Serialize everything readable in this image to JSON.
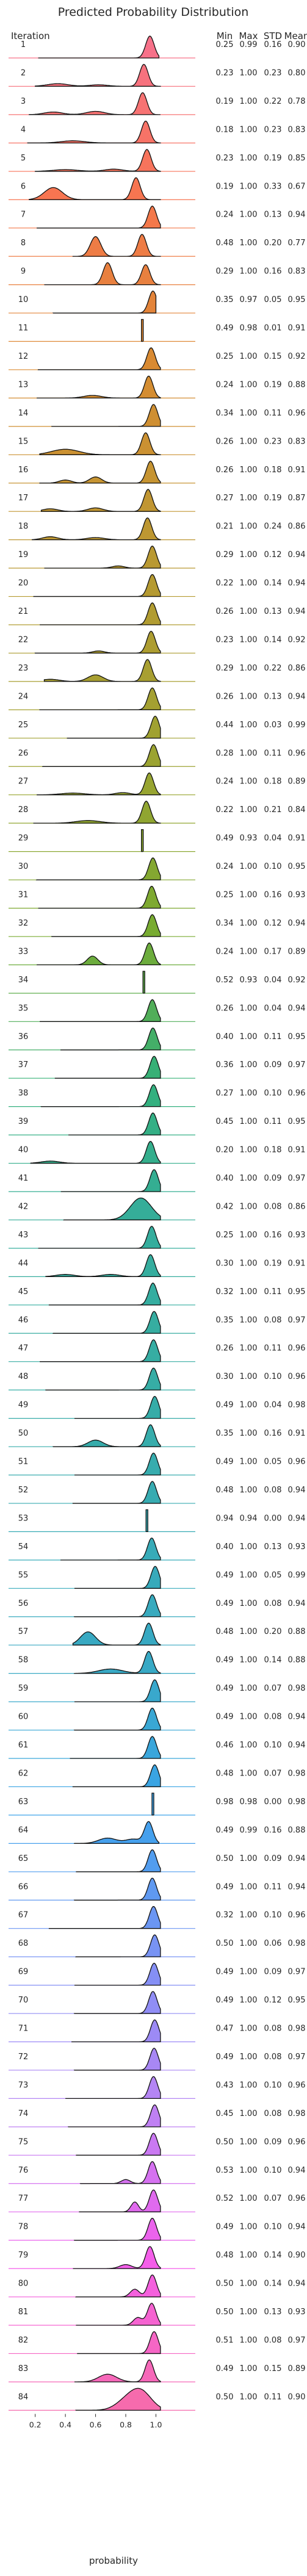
{
  "chart_data": {
    "type": "ridgeline",
    "title": "Predicted Probability Distribution",
    "xlabel": "probability",
    "row_header": "Iteration",
    "stat_headers": [
      "Min",
      "Max",
      "STD",
      "Mean"
    ],
    "x_ticks": [
      "0.2",
      "0.4",
      "0.6",
      "0.8",
      "1.0"
    ],
    "x_tick_values": [
      0.2,
      0.4,
      0.6,
      0.8,
      1.0
    ],
    "xlim": [
      0.08,
      1.18
    ],
    "palette": [
      "#f77189",
      "#f7754f",
      "#dc8932",
      "#c39532",
      "#ae9d31",
      "#97a431",
      "#77ab31",
      "#33b07a",
      "#35ad9c",
      "#36ada4",
      "#37abb4",
      "#38a9c5",
      "#3ba3ec",
      "#7e91f5",
      "#bb83f4",
      "#f45deb",
      "#f66bad"
    ],
    "rows": [
      {
        "iteration": "1",
        "min": "0.25",
        "max": "0.99",
        "std": "0.16",
        "mean": "0.90"
      },
      {
        "iteration": "2",
        "min": "0.23",
        "max": "1.00",
        "std": "0.23",
        "mean": "0.80"
      },
      {
        "iteration": "3",
        "min": "0.19",
        "max": "1.00",
        "std": "0.22",
        "mean": "0.78"
      },
      {
        "iteration": "4",
        "min": "0.18",
        "max": "1.00",
        "std": "0.23",
        "mean": "0.83"
      },
      {
        "iteration": "5",
        "min": "0.23",
        "max": "1.00",
        "std": "0.19",
        "mean": "0.85"
      },
      {
        "iteration": "6",
        "min": "0.19",
        "max": "1.00",
        "std": "0.33",
        "mean": "0.67"
      },
      {
        "iteration": "7",
        "min": "0.24",
        "max": "1.00",
        "std": "0.13",
        "mean": "0.94"
      },
      {
        "iteration": "8",
        "min": "0.48",
        "max": "1.00",
        "std": "0.20",
        "mean": "0.77"
      },
      {
        "iteration": "9",
        "min": "0.29",
        "max": "1.00",
        "std": "0.16",
        "mean": "0.83"
      },
      {
        "iteration": "10",
        "min": "0.35",
        "max": "0.97",
        "std": "0.05",
        "mean": "0.95"
      },
      {
        "iteration": "11",
        "min": "0.49",
        "max": "0.98",
        "std": "0.01",
        "mean": "0.91"
      },
      {
        "iteration": "12",
        "min": "0.25",
        "max": "1.00",
        "std": "0.15",
        "mean": "0.92"
      },
      {
        "iteration": "13",
        "min": "0.24",
        "max": "1.00",
        "std": "0.19",
        "mean": "0.88"
      },
      {
        "iteration": "14",
        "min": "0.34",
        "max": "1.00",
        "std": "0.11",
        "mean": "0.96"
      },
      {
        "iteration": "15",
        "min": "0.26",
        "max": "1.00",
        "std": "0.23",
        "mean": "0.83"
      },
      {
        "iteration": "16",
        "min": "0.26",
        "max": "1.00",
        "std": "0.18",
        "mean": "0.91"
      },
      {
        "iteration": "17",
        "min": "0.27",
        "max": "1.00",
        "std": "0.19",
        "mean": "0.87"
      },
      {
        "iteration": "18",
        "min": "0.21",
        "max": "1.00",
        "std": "0.24",
        "mean": "0.86"
      },
      {
        "iteration": "19",
        "min": "0.29",
        "max": "1.00",
        "std": "0.12",
        "mean": "0.94"
      },
      {
        "iteration": "20",
        "min": "0.22",
        "max": "1.00",
        "std": "0.14",
        "mean": "0.94"
      },
      {
        "iteration": "21",
        "min": "0.26",
        "max": "1.00",
        "std": "0.13",
        "mean": "0.94"
      },
      {
        "iteration": "22",
        "min": "0.23",
        "max": "1.00",
        "std": "0.14",
        "mean": "0.92"
      },
      {
        "iteration": "23",
        "min": "0.29",
        "max": "1.00",
        "std": "0.22",
        "mean": "0.86"
      },
      {
        "iteration": "24",
        "min": "0.26",
        "max": "1.00",
        "std": "0.13",
        "mean": "0.94"
      },
      {
        "iteration": "25",
        "min": "0.44",
        "max": "1.00",
        "std": "0.03",
        "mean": "0.99"
      },
      {
        "iteration": "26",
        "min": "0.28",
        "max": "1.00",
        "std": "0.11",
        "mean": "0.96"
      },
      {
        "iteration": "27",
        "min": "0.24",
        "max": "1.00",
        "std": "0.18",
        "mean": "0.89"
      },
      {
        "iteration": "28",
        "min": "0.22",
        "max": "1.00",
        "std": "0.21",
        "mean": "0.84"
      },
      {
        "iteration": "29",
        "min": "0.49",
        "max": "0.93",
        "std": "0.04",
        "mean": "0.91"
      },
      {
        "iteration": "30",
        "min": "0.24",
        "max": "1.00",
        "std": "0.10",
        "mean": "0.95"
      },
      {
        "iteration": "31",
        "min": "0.25",
        "max": "1.00",
        "std": "0.16",
        "mean": "0.93"
      },
      {
        "iteration": "32",
        "min": "0.34",
        "max": "1.00",
        "std": "0.12",
        "mean": "0.94"
      },
      {
        "iteration": "33",
        "min": "0.24",
        "max": "1.00",
        "std": "0.17",
        "mean": "0.89"
      },
      {
        "iteration": "34",
        "min": "0.52",
        "max": "0.93",
        "std": "0.04",
        "mean": "0.92"
      },
      {
        "iteration": "35",
        "min": "0.26",
        "max": "1.00",
        "std": "0.04",
        "mean": "0.94"
      },
      {
        "iteration": "36",
        "min": "0.40",
        "max": "1.00",
        "std": "0.11",
        "mean": "0.95"
      },
      {
        "iteration": "37",
        "min": "0.36",
        "max": "1.00",
        "std": "0.09",
        "mean": "0.97"
      },
      {
        "iteration": "38",
        "min": "0.27",
        "max": "1.00",
        "std": "0.10",
        "mean": "0.96"
      },
      {
        "iteration": "39",
        "min": "0.45",
        "max": "1.00",
        "std": "0.11",
        "mean": "0.95"
      },
      {
        "iteration": "40",
        "min": "0.20",
        "max": "1.00",
        "std": "0.18",
        "mean": "0.91"
      },
      {
        "iteration": "41",
        "min": "0.40",
        "max": "1.00",
        "std": "0.09",
        "mean": "0.97"
      },
      {
        "iteration": "42",
        "min": "0.42",
        "max": "1.00",
        "std": "0.08",
        "mean": "0.86"
      },
      {
        "iteration": "43",
        "min": "0.25",
        "max": "1.00",
        "std": "0.16",
        "mean": "0.93"
      },
      {
        "iteration": "44",
        "min": "0.30",
        "max": "1.00",
        "std": "0.19",
        "mean": "0.91"
      },
      {
        "iteration": "45",
        "min": "0.32",
        "max": "1.00",
        "std": "0.11",
        "mean": "0.95"
      },
      {
        "iteration": "46",
        "min": "0.35",
        "max": "1.00",
        "std": "0.08",
        "mean": "0.97"
      },
      {
        "iteration": "47",
        "min": "0.26",
        "max": "1.00",
        "std": "0.11",
        "mean": "0.96"
      },
      {
        "iteration": "48",
        "min": "0.30",
        "max": "1.00",
        "std": "0.10",
        "mean": "0.96"
      },
      {
        "iteration": "49",
        "min": "0.49",
        "max": "1.00",
        "std": "0.04",
        "mean": "0.98"
      },
      {
        "iteration": "50",
        "min": "0.35",
        "max": "1.00",
        "std": "0.16",
        "mean": "0.91"
      },
      {
        "iteration": "51",
        "min": "0.49",
        "max": "1.00",
        "std": "0.05",
        "mean": "0.96"
      },
      {
        "iteration": "52",
        "min": "0.48",
        "max": "1.00",
        "std": "0.08",
        "mean": "0.94"
      },
      {
        "iteration": "53",
        "min": "0.94",
        "max": "0.94",
        "std": "0.00",
        "mean": "0.94"
      },
      {
        "iteration": "54",
        "min": "0.40",
        "max": "1.00",
        "std": "0.13",
        "mean": "0.93"
      },
      {
        "iteration": "55",
        "min": "0.49",
        "max": "1.00",
        "std": "0.05",
        "mean": "0.99"
      },
      {
        "iteration": "56",
        "min": "0.49",
        "max": "1.00",
        "std": "0.08",
        "mean": "0.94"
      },
      {
        "iteration": "57",
        "min": "0.48",
        "max": "1.00",
        "std": "0.20",
        "mean": "0.88"
      },
      {
        "iteration": "58",
        "min": "0.49",
        "max": "1.00",
        "std": "0.14",
        "mean": "0.88"
      },
      {
        "iteration": "59",
        "min": "0.49",
        "max": "1.00",
        "std": "0.07",
        "mean": "0.98"
      },
      {
        "iteration": "60",
        "min": "0.49",
        "max": "1.00",
        "std": "0.08",
        "mean": "0.94"
      },
      {
        "iteration": "61",
        "min": "0.46",
        "max": "1.00",
        "std": "0.10",
        "mean": "0.94"
      },
      {
        "iteration": "62",
        "min": "0.48",
        "max": "1.00",
        "std": "0.07",
        "mean": "0.98"
      },
      {
        "iteration": "63",
        "min": "0.98",
        "max": "0.98",
        "std": "0.00",
        "mean": "0.98"
      },
      {
        "iteration": "64",
        "min": "0.49",
        "max": "0.99",
        "std": "0.16",
        "mean": "0.88"
      },
      {
        "iteration": "65",
        "min": "0.50",
        "max": "1.00",
        "std": "0.09",
        "mean": "0.94"
      },
      {
        "iteration": "66",
        "min": "0.49",
        "max": "1.00",
        "std": "0.11",
        "mean": "0.94"
      },
      {
        "iteration": "67",
        "min": "0.32",
        "max": "1.00",
        "std": "0.10",
        "mean": "0.96"
      },
      {
        "iteration": "68",
        "min": "0.50",
        "max": "1.00",
        "std": "0.06",
        "mean": "0.98"
      },
      {
        "iteration": "69",
        "min": "0.49",
        "max": "1.00",
        "std": "0.09",
        "mean": "0.97"
      },
      {
        "iteration": "70",
        "min": "0.49",
        "max": "1.00",
        "std": "0.12",
        "mean": "0.95"
      },
      {
        "iteration": "71",
        "min": "0.47",
        "max": "1.00",
        "std": "0.08",
        "mean": "0.98"
      },
      {
        "iteration": "72",
        "min": "0.49",
        "max": "1.00",
        "std": "0.08",
        "mean": "0.97"
      },
      {
        "iteration": "73",
        "min": "0.43",
        "max": "1.00",
        "std": "0.10",
        "mean": "0.96"
      },
      {
        "iteration": "74",
        "min": "0.45",
        "max": "1.00",
        "std": "0.08",
        "mean": "0.98"
      },
      {
        "iteration": "75",
        "min": "0.50",
        "max": "1.00",
        "std": "0.09",
        "mean": "0.96"
      },
      {
        "iteration": "76",
        "min": "0.53",
        "max": "1.00",
        "std": "0.10",
        "mean": "0.94"
      },
      {
        "iteration": "77",
        "min": "0.52",
        "max": "1.00",
        "std": "0.07",
        "mean": "0.96"
      },
      {
        "iteration": "78",
        "min": "0.49",
        "max": "1.00",
        "std": "0.10",
        "mean": "0.94"
      },
      {
        "iteration": "79",
        "min": "0.48",
        "max": "1.00",
        "std": "0.14",
        "mean": "0.90"
      },
      {
        "iteration": "80",
        "min": "0.50",
        "max": "1.00",
        "std": "0.14",
        "mean": "0.94"
      },
      {
        "iteration": "81",
        "min": "0.50",
        "max": "1.00",
        "std": "0.13",
        "mean": "0.93"
      },
      {
        "iteration": "82",
        "min": "0.51",
        "max": "1.00",
        "std": "0.08",
        "mean": "0.97"
      },
      {
        "iteration": "83",
        "min": "0.49",
        "max": "1.00",
        "std": "0.15",
        "mean": "0.89"
      },
      {
        "iteration": "84",
        "min": "0.50",
        "max": "1.00",
        "std": "0.11",
        "mean": "0.90"
      }
    ],
    "bumps": {
      "2": [
        [
          0.35,
          0.07,
          0.12
        ],
        [
          0.62,
          0.06,
          0.07
        ]
      ],
      "3": [
        [
          0.32,
          0.06,
          0.12
        ],
        [
          0.6,
          0.06,
          0.15
        ]
      ],
      "4": [
        [
          0.45,
          0.08,
          0.1
        ]
      ],
      "5": [
        [
          0.4,
          0.08,
          0.08
        ],
        [
          0.72,
          0.06,
          0.1
        ]
      ],
      "6": [
        [
          0.32,
          0.06,
          0.55
        ]
      ],
      "8": [
        [
          0.6,
          0.035,
          0.9
        ]
      ],
      "9": [
        [
          0.68,
          0.03,
          1.1
        ]
      ],
      "13": [
        [
          0.58,
          0.06,
          0.12
        ]
      ],
      "15": [
        [
          0.4,
          0.09,
          0.25
        ]
      ],
      "16": [
        [
          0.4,
          0.04,
          0.14
        ],
        [
          0.6,
          0.04,
          0.28
        ]
      ],
      "17": [
        [
          0.3,
          0.05,
          0.12
        ],
        [
          0.6,
          0.05,
          0.16
        ]
      ],
      "18": [
        [
          0.3,
          0.05,
          0.14
        ],
        [
          0.6,
          0.06,
          0.1
        ]
      ],
      "19": [
        [
          0.75,
          0.04,
          0.1
        ]
      ],
      "22": [
        [
          0.62,
          0.04,
          0.1
        ]
      ],
      "23": [
        [
          0.3,
          0.06,
          0.1
        ],
        [
          0.6,
          0.05,
          0.3
        ]
      ],
      "27": [
        [
          0.45,
          0.08,
          0.08
        ],
        [
          0.78,
          0.05,
          0.1
        ]
      ],
      "28": [
        [
          0.55,
          0.08,
          0.12
        ]
      ],
      "33": [
        [
          0.58,
          0.035,
          0.4
        ]
      ],
      "40": [
        [
          0.3,
          0.06,
          0.1
        ]
      ],
      "44": [
        [
          0.4,
          0.06,
          0.1
        ],
        [
          0.7,
          0.06,
          0.1
        ]
      ],
      "50": [
        [
          0.6,
          0.05,
          0.3
        ]
      ],
      "57": [
        [
          0.55,
          0.05,
          0.6
        ]
      ],
      "58": [
        [
          0.7,
          0.08,
          0.2
        ]
      ],
      "64": [
        [
          0.68,
          0.06,
          0.25
        ],
        [
          0.85,
          0.05,
          0.2
        ]
      ],
      "76": [
        [
          0.8,
          0.03,
          0.18
        ]
      ],
      "77": [
        [
          0.86,
          0.025,
          0.45
        ]
      ],
      "79": [
        [
          0.8,
          0.04,
          0.18
        ]
      ],
      "80": [
        [
          0.86,
          0.03,
          0.35
        ]
      ],
      "81": [
        [
          0.88,
          0.03,
          0.35
        ]
      ],
      "83": [
        [
          0.68,
          0.06,
          0.35
        ]
      ],
      "84": [
        [
          0.8,
          0.07,
          0.45
        ]
      ]
    },
    "spikes": [
      "11",
      "29",
      "34",
      "53",
      "63"
    ],
    "wide_peaks": [
      "42",
      "84"
    ]
  }
}
